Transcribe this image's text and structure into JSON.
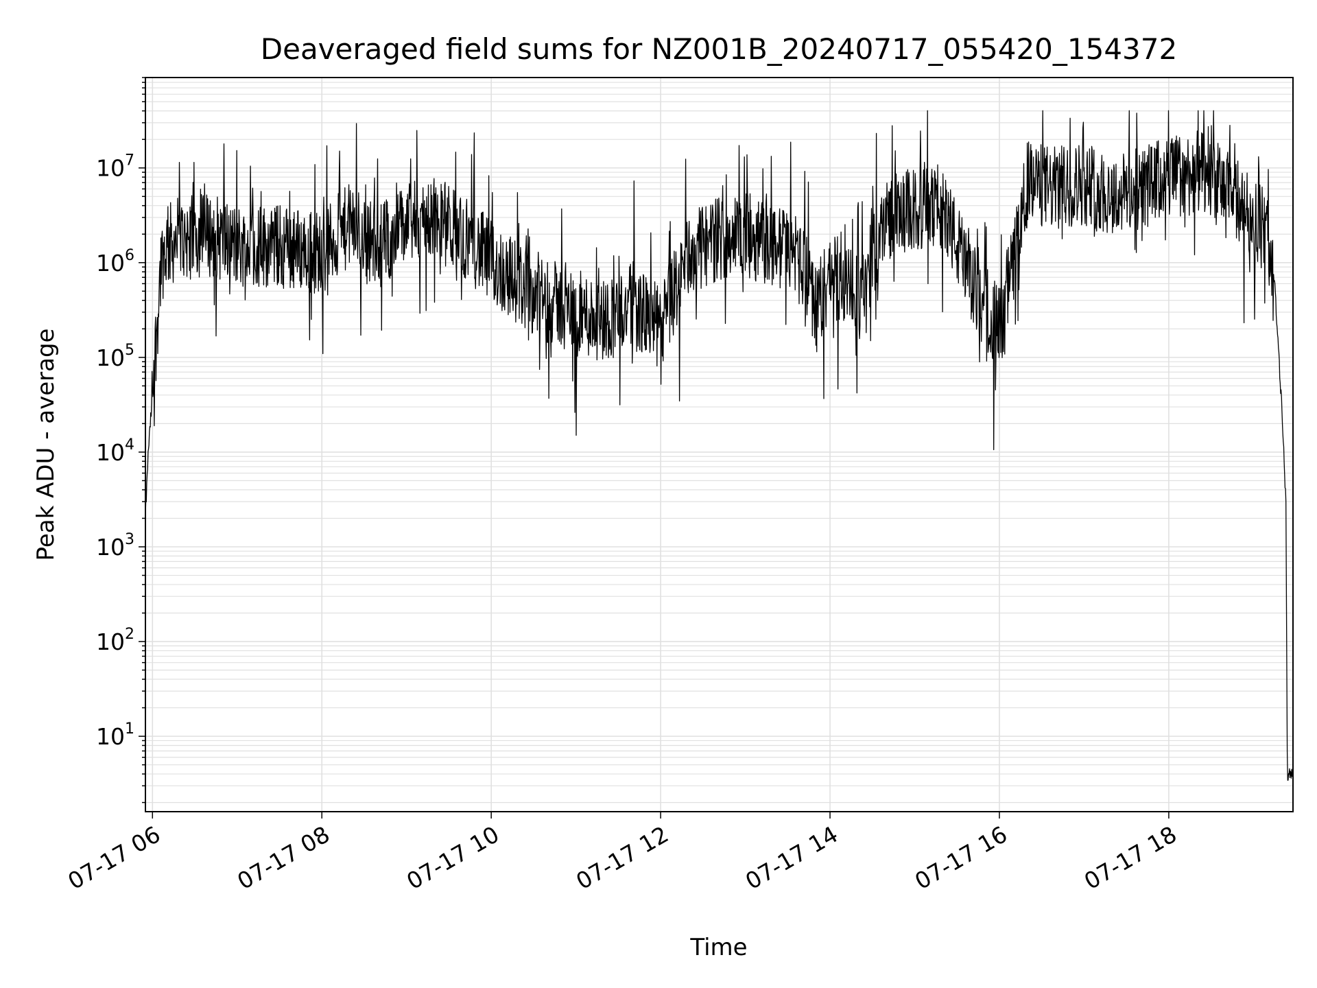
{
  "chart_data": {
    "type": "line",
    "title": "Deaveraged field sums for NZ001B_20240717_055420_154372",
    "xlabel": "Time",
    "ylabel": "Peak ADU - average",
    "yscale": "log",
    "grid": true,
    "line_color": "#000000",
    "grid_color": "#e0e0e0",
    "x_ticks": [
      "07-17 06",
      "07-17 08",
      "07-17 10",
      "07-17 12",
      "07-17 14",
      "07-17 16",
      "07-17 18"
    ],
    "y_ticks": [
      {
        "base": "10",
        "exp": "1"
      },
      {
        "base": "10",
        "exp": "2"
      },
      {
        "base": "10",
        "exp": "3"
      },
      {
        "base": "10",
        "exp": "4"
      },
      {
        "base": "10",
        "exp": "5"
      },
      {
        "base": "10",
        "exp": "6"
      },
      {
        "base": "10",
        "exp": "7"
      }
    ],
    "xlim": [
      "07-17 05:55",
      "07-17 19:28"
    ],
    "ylim": [
      1.6,
      90000000
    ],
    "series": [
      {
        "x": [
          "07-17 05:55",
          "07-17 05:57",
          "07-17 06:00",
          "07-17 06:03",
          "07-17 06:06",
          "07-17 06:10",
          "07-17 06:20",
          "07-17 06:40",
          "07-17 07:00",
          "07-17 07:30",
          "07-17 08:00",
          "07-17 08:20",
          "07-17 08:40",
          "07-17 09:00",
          "07-17 09:20",
          "07-17 09:40",
          "07-17 10:00",
          "07-17 10:20",
          "07-17 10:40",
          "07-17 11:00",
          "07-17 11:20",
          "07-17 11:40",
          "07-17 12:00",
          "07-17 12:20",
          "07-17 12:40",
          "07-17 13:00",
          "07-17 13:20",
          "07-17 13:40",
          "07-17 13:50",
          "07-17 14:00",
          "07-17 14:20",
          "07-17 14:40",
          "07-17 15:00",
          "07-17 15:20",
          "07-17 15:40",
          "07-17 16:00",
          "07-17 16:10",
          "07-17 16:20",
          "07-17 16:40",
          "07-17 17:00",
          "07-17 17:20",
          "07-17 17:40",
          "07-17 18:00",
          "07-17 18:20",
          "07-17 18:40",
          "07-17 19:00",
          "07-17 19:10",
          "07-17 19:15",
          "07-17 19:20",
          "07-17 19:23",
          "07-17 19:24",
          "07-17 19:26",
          "07-17 19:28"
        ],
        "y": [
          2000,
          10000,
          40000,
          200000,
          1000000,
          1500000,
          1800000,
          2000000,
          1500000,
          1500000,
          1300000,
          2500000,
          1500000,
          2500000,
          3000000,
          2000000,
          1000000,
          600000,
          400000,
          300000,
          250000,
          350000,
          200000,
          1200000,
          1800000,
          2000000,
          1500000,
          1200000,
          300000,
          800000,
          400000,
          3000000,
          3500000,
          4000000,
          600000,
          200000,
          1000000,
          7000000,
          6000000,
          7000000,
          5000000,
          6000000,
          8000000,
          9000000,
          6000000,
          3000000,
          2000000,
          600000,
          30000,
          3000,
          4,
          4,
          4
        ]
      }
    ]
  }
}
